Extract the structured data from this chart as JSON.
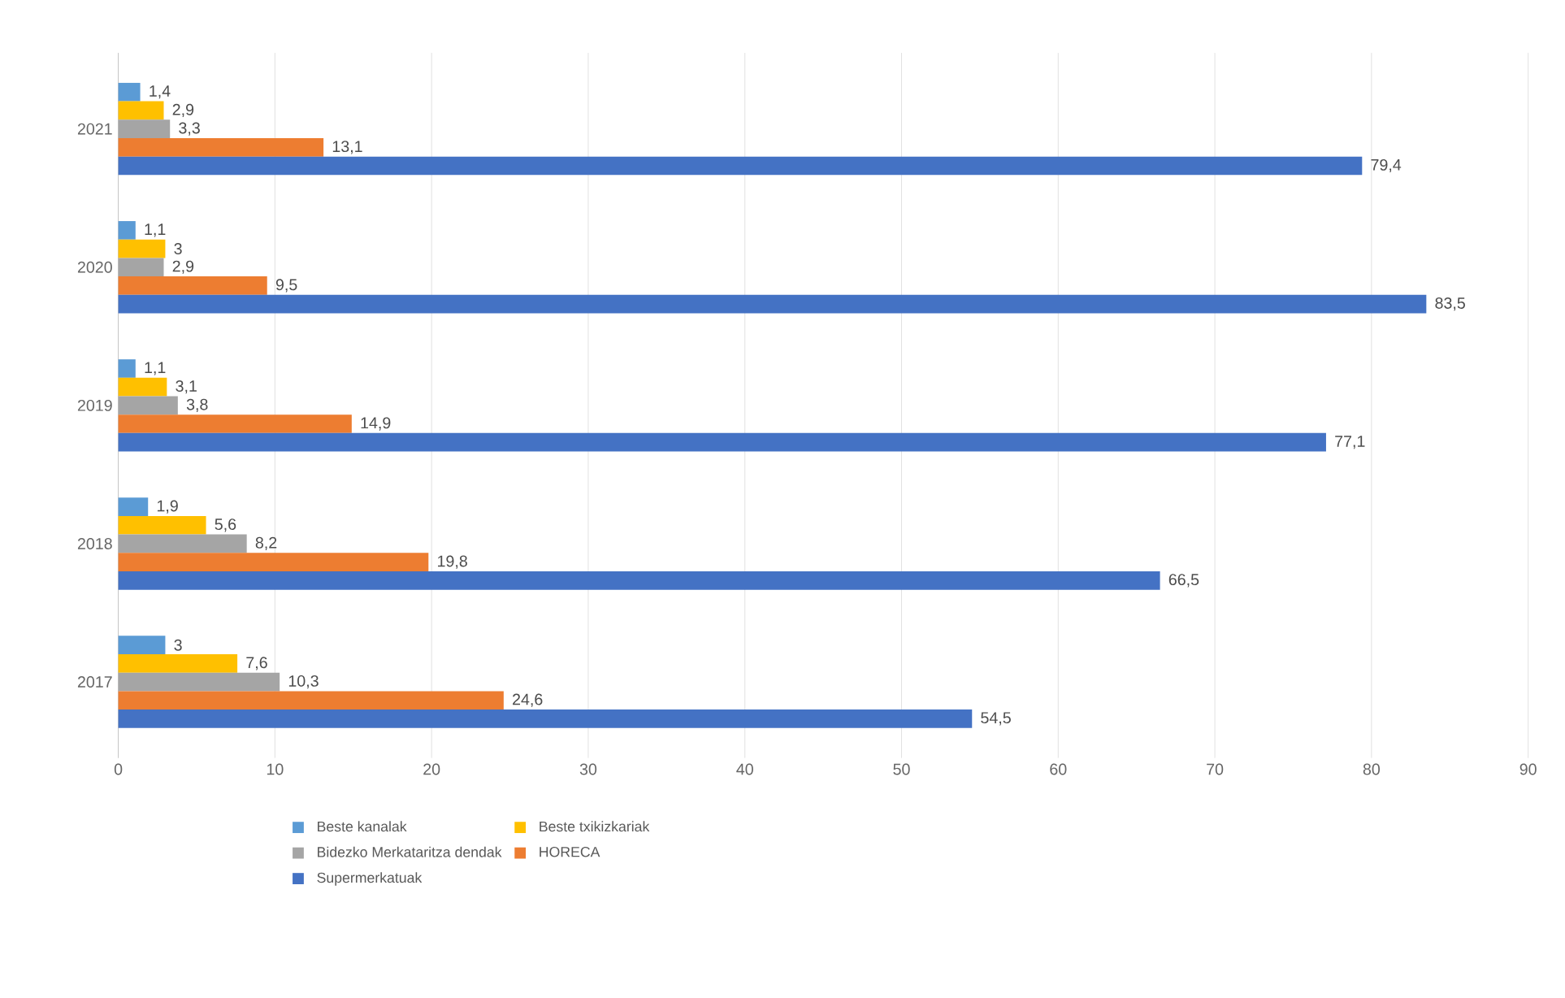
{
  "chart_data": {
    "type": "bar",
    "orientation": "horizontal",
    "categories": [
      "2021",
      "2020",
      "2019",
      "2018",
      "2017"
    ],
    "series": [
      {
        "name": "Beste kanalak",
        "color": "#5b9bd5",
        "values": [
          1.4,
          1.1,
          1.1,
          1.9,
          3
        ],
        "value_labels": [
          "1,4",
          "1,1",
          "1,1",
          "1,9",
          "3"
        ]
      },
      {
        "name": "Beste txikizkariak",
        "color": "#ffc000",
        "values": [
          2.9,
          3,
          3.1,
          5.6,
          7.6
        ],
        "value_labels": [
          "2,9",
          "3",
          "3,1",
          "5,6",
          "7,6"
        ]
      },
      {
        "name": "Bidezko Merkataritza dendak",
        "color": "#a5a5a5",
        "values": [
          3.3,
          2.9,
          3.8,
          8.2,
          10.3
        ],
        "value_labels": [
          "3,3",
          "2,9",
          "3,8",
          "8,2",
          "10,3"
        ]
      },
      {
        "name": "HORECA",
        "color": "#ed7d31",
        "values": [
          13.1,
          9.5,
          14.9,
          19.8,
          24.6
        ],
        "value_labels": [
          "13,1",
          "9,5",
          "14,9",
          "19,8",
          "24,6"
        ]
      },
      {
        "name": "Supermerkatuak",
        "color": "#4472c4",
        "values": [
          79.4,
          83.5,
          77.1,
          66.5,
          54.5
        ],
        "value_labels": [
          "79,4",
          "83,5",
          "77,1",
          "66,5",
          "54,5"
        ]
      }
    ],
    "xlim": [
      0,
      90
    ],
    "xticks": [
      0,
      10,
      20,
      30,
      40,
      50,
      60,
      70,
      80,
      90
    ],
    "grid": "x",
    "legend": "bottom"
  }
}
